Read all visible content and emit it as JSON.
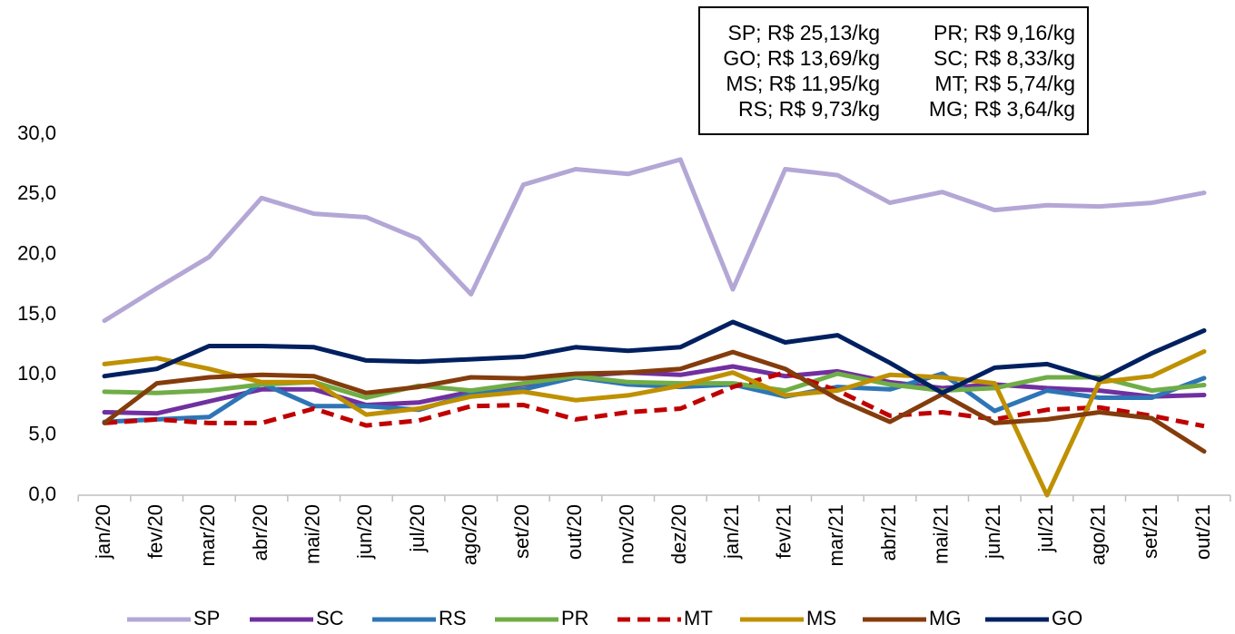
{
  "chart_data": {
    "type": "line",
    "categories": [
      "jan/20",
      "fev/20",
      "mar/20",
      "abr/20",
      "mai/20",
      "jun/20",
      "jul/20",
      "ago/20",
      "set/20",
      "out/20",
      "nov/20",
      "dez/20",
      "jan/21",
      "fev/21",
      "mar/21",
      "abr/21",
      "mai/21",
      "jun/21",
      "jul/21",
      "ago/21",
      "set/21",
      "out/21"
    ],
    "ylim": [
      0,
      30
    ],
    "yticks": [
      {
        "value": 0,
        "label": "0,0"
      },
      {
        "value": 5,
        "label": "5,0"
      },
      {
        "value": 10,
        "label": "10,0"
      },
      {
        "value": 15,
        "label": "15,0"
      },
      {
        "value": 20,
        "label": "20,0"
      },
      {
        "value": 25,
        "label": "25,0"
      },
      {
        "value": 30,
        "label": "30,0"
      }
    ],
    "grid": false,
    "legend": "bottom",
    "annotations": [
      "SP; R$ 25,13/kg",
      "GO; R$ 13,69/kg",
      "MS; R$ 11,95/kg",
      "RS; R$ 9,73/kg",
      "PR; R$ 9,16/kg",
      "SC; R$ 8,33/kg",
      "MT; R$ 5,74/kg",
      "MG; R$ 3,64/kg"
    ],
    "series": [
      {
        "name": "SP",
        "color": "#b4a7d6",
        "line_style": "solid",
        "values": [
          14.5,
          17.2,
          19.8,
          24.7,
          23.4,
          23.1,
          21.3,
          16.7,
          25.8,
          27.1,
          26.7,
          27.9,
          17.1,
          27.1,
          26.6,
          24.3,
          25.2,
          23.7,
          24.1,
          24.0,
          24.3,
          25.13
        ]
      },
      {
        "name": "SC",
        "color": "#7030a0",
        "line_style": "solid",
        "values": [
          6.9,
          6.8,
          7.8,
          8.8,
          8.8,
          7.5,
          7.7,
          8.6,
          9.2,
          9.9,
          10.2,
          10.0,
          10.7,
          9.9,
          10.3,
          9.4,
          8.9,
          9.2,
          8.9,
          8.7,
          8.2,
          8.33
        ]
      },
      {
        "name": "RS",
        "color": "#2e75b6",
        "line_style": "solid",
        "values": [
          6.1,
          6.3,
          6.5,
          9.3,
          7.4,
          7.4,
          7.1,
          8.4,
          8.8,
          9.8,
          9.2,
          9.0,
          9.2,
          8.2,
          9.0,
          8.8,
          10.1,
          7.0,
          8.7,
          8.1,
          8.1,
          9.73
        ]
      },
      {
        "name": "PR",
        "color": "#70ad47",
        "line_style": "solid",
        "values": [
          8.6,
          8.5,
          8.7,
          9.2,
          9.4,
          8.1,
          9.1,
          8.7,
          9.3,
          9.9,
          9.4,
          9.3,
          9.3,
          8.7,
          10.1,
          9.2,
          8.7,
          8.9,
          9.8,
          9.8,
          8.7,
          9.16
        ]
      },
      {
        "name": "MT",
        "color": "#c00000",
        "line_style": "dashed",
        "values": [
          6.0,
          6.3,
          6.0,
          6.0,
          7.2,
          5.8,
          6.2,
          7.4,
          7.5,
          6.3,
          6.9,
          7.2,
          9.0,
          10.2,
          8.7,
          6.6,
          6.9,
          6.3,
          7.1,
          7.3,
          6.6,
          5.74
        ]
      },
      {
        "name": "MS",
        "color": "#bf9000",
        "line_style": "solid",
        "values": [
          10.9,
          11.4,
          10.5,
          9.4,
          9.4,
          6.7,
          7.2,
          8.2,
          8.6,
          7.9,
          8.3,
          9.1,
          10.2,
          8.3,
          8.7,
          10.0,
          9.8,
          9.3,
          0.0,
          9.4,
          9.9,
          11.95
        ]
      },
      {
        "name": "MG",
        "color": "#843c0c",
        "line_style": "solid",
        "values": [
          6.0,
          9.3,
          9.8,
          10.0,
          9.9,
          8.5,
          9.0,
          9.8,
          9.7,
          10.1,
          10.2,
          10.5,
          11.9,
          10.5,
          8.0,
          6.1,
          8.4,
          6.0,
          6.3,
          6.9,
          6.4,
          3.64
        ]
      },
      {
        "name": "GO",
        "color": "#002060",
        "line_style": "solid",
        "values": [
          9.9,
          10.5,
          12.4,
          12.4,
          12.3,
          11.2,
          11.1,
          11.3,
          11.5,
          12.3,
          12.0,
          12.3,
          14.4,
          12.7,
          13.3,
          11.0,
          8.5,
          10.6,
          10.9,
          9.6,
          11.8,
          13.69
        ]
      }
    ]
  }
}
